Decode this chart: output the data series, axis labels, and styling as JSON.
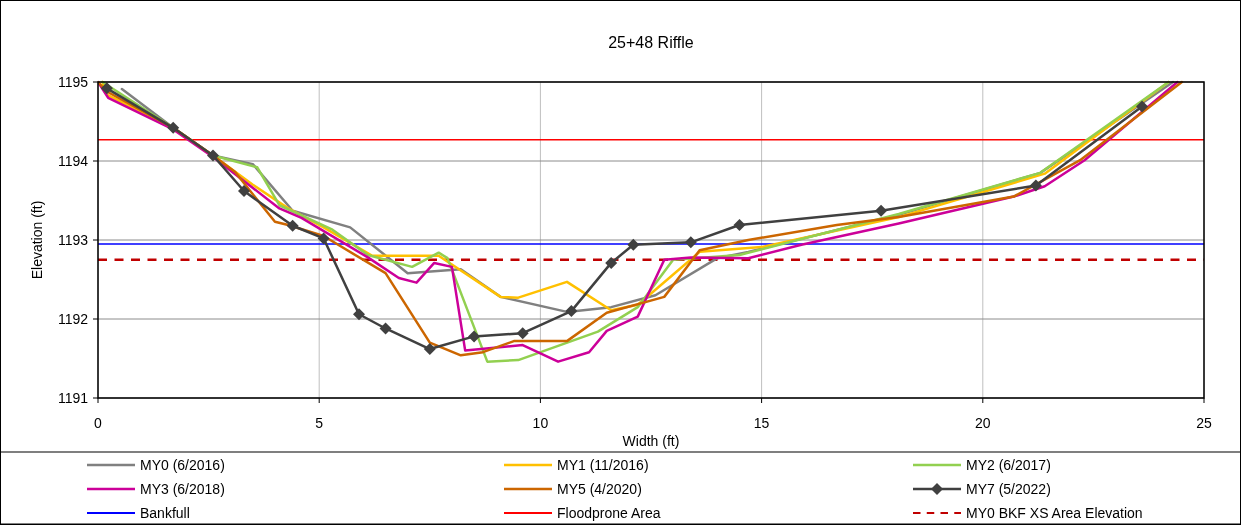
{
  "chart_data": {
    "type": "line",
    "title": "25+48 Riffle",
    "xlabel": "Width (ft)",
    "ylabel": "Elevation (ft)",
    "xlim": [
      0,
      25
    ],
    "xticks": [
      0,
      5,
      10,
      15,
      20,
      25
    ],
    "ylim": [
      1191,
      1195
    ],
    "yticks": [
      1191,
      1192,
      1193,
      1194,
      1195
    ],
    "grid": true,
    "legend": "bottom",
    "marker": "none",
    "line_style": "solid",
    "series": [
      {
        "name": "MY0 (6/2016)",
        "color": "#808080",
        "x": [
          0.54,
          1.7,
          2.6,
          3.5,
          4.4,
          5.7,
          7.0,
          8.2,
          9.1,
          10.6,
          11.6,
          12.6,
          14.0,
          14.7,
          18.1,
          21.3,
          24.3
        ],
        "values": [
          1194.91,
          1194.42,
          1194.07,
          1193.96,
          1193.37,
          1193.16,
          1192.58,
          1192.63,
          1192.28,
          1192.09,
          1192.15,
          1192.3,
          1192.77,
          1192.85,
          1193.32,
          1193.85,
          1195
        ]
      },
      {
        "name": "MY1 (11/2016)",
        "color": "#ffc000",
        "x": [
          0.1,
          0.2,
          1.7,
          2.6,
          3.5,
          4.3,
          5.1,
          6.2,
          7.7,
          9.1,
          9.5,
          10.6,
          11.6,
          12.2,
          12.6,
          13.6,
          15.0,
          18.1,
          21.4,
          24.2
        ],
        "values": [
          1195,
          1194.84,
          1194.42,
          1194.07,
          1193.7,
          1193.4,
          1193.16,
          1192.8,
          1192.8,
          1192.28,
          1192.27,
          1192.47,
          1192.11,
          1192.18,
          1192.37,
          1192.85,
          1192.91,
          1193.29,
          1193.84,
          1195
        ]
      },
      {
        "name": "MY2 (6/2017)",
        "color": "#92d050",
        "x": [
          0.1,
          1.7,
          2.6,
          3.6,
          4.1,
          5.3,
          6.1,
          7.1,
          7.7,
          7.9,
          8.8,
          9.5,
          11.3,
          12.2,
          13.0,
          13.5,
          14.5,
          18.1,
          21.3,
          24.2
        ],
        "values": [
          1195,
          1194.42,
          1194.07,
          1193.92,
          1193.44,
          1193.13,
          1192.81,
          1192.66,
          1192.84,
          1192.77,
          1191.46,
          1191.48,
          1191.84,
          1192.15,
          1192.75,
          1192.77,
          1192.81,
          1193.33,
          1193.85,
          1195
        ]
      },
      {
        "name": "MY3 (6/2018)",
        "color": "#cc0099",
        "x": [
          0.0,
          0.23,
          1.7,
          2.6,
          4.1,
          4.6,
          6.1,
          6.8,
          7.2,
          7.6,
          8.0,
          8.3,
          9.6,
          10.4,
          11.1,
          11.5,
          12.2,
          12.8,
          13.4,
          14.7,
          15.9,
          18.1,
          20.7,
          21.4,
          22.3,
          24.4
        ],
        "values": [
          1195,
          1194.8,
          1194.4,
          1194.05,
          1193.4,
          1193.28,
          1192.78,
          1192.52,
          1192.46,
          1192.71,
          1192.66,
          1191.6,
          1191.67,
          1191.46,
          1191.58,
          1191.85,
          1192.03,
          1192.75,
          1192.78,
          1192.77,
          1192.94,
          1193.21,
          1193.55,
          1193.68,
          1194.01,
          1195
        ]
      },
      {
        "name": "MY5 (4/2020)",
        "color": "#cc6600",
        "x": [
          0.0,
          0.2,
          1.7,
          2.6,
          3.1,
          4.0,
          4.3,
          5.1,
          6.5,
          7.5,
          8.2,
          8.7,
          9.4,
          10.6,
          11.5,
          12.8,
          13.6,
          14.7,
          16.7,
          18.1,
          20.7,
          22.2,
          24.5
        ],
        "values": [
          1195,
          1194.88,
          1194.42,
          1194.07,
          1193.86,
          1193.23,
          1193.19,
          1193.05,
          1192.58,
          1191.7,
          1191.54,
          1191.58,
          1191.72,
          1191.72,
          1192.08,
          1192.28,
          1192.87,
          1193.0,
          1193.19,
          1193.29,
          1193.55,
          1194.01,
          1195
        ]
      },
      {
        "name": "MY7 (5/2022)",
        "color": "#404040",
        "marker": "diamond",
        "x": [
          0.2,
          1.7,
          2.6,
          3.3,
          4.4,
          5.1,
          5.9,
          6.5,
          7.5,
          8.5,
          9.6,
          10.7,
          11.6,
          12.1,
          13.4,
          14.5,
          17.7,
          21.2,
          23.6
        ],
        "values": [
          1194.92,
          1194.42,
          1194.07,
          1193.62,
          1193.18,
          1193.02,
          1192.06,
          1191.88,
          1191.62,
          1191.78,
          1191.82,
          1192.1,
          1192.71,
          1192.94,
          1192.97,
          1193.19,
          1193.37,
          1193.69,
          1194.69
        ]
      }
    ],
    "ref_lines": [
      {
        "axis": "y",
        "value": 1192.95,
        "label": "Bankfull",
        "color": "#0000ff",
        "line_style": "solid"
      },
      {
        "axis": "y",
        "value": 1194.27,
        "label": "Floodprone Area",
        "color": "#ff0000",
        "line_style": "solid"
      },
      {
        "axis": "y",
        "value": 1192.75,
        "label": "MY0 BKF XS Area Elevation",
        "color": "#c00000",
        "line_style": "dashed"
      }
    ]
  }
}
